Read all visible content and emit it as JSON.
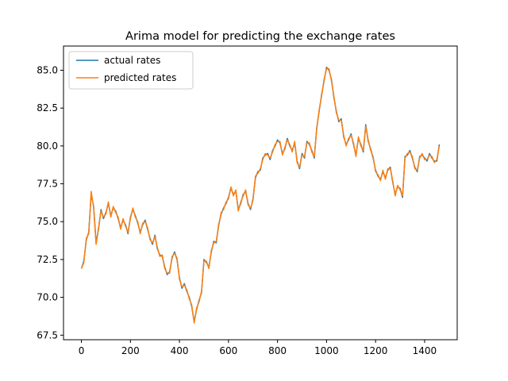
{
  "chart_data": {
    "type": "line",
    "title": "Arima model for predicting the exchange rates",
    "xlabel": "",
    "ylabel": "",
    "xlim": [
      -73,
      1533
    ],
    "ylim": [
      67.2,
      86.6
    ],
    "xticks": [
      0,
      200,
      400,
      600,
      800,
      1000,
      1200,
      1400
    ],
    "xtick_labels": [
      "0",
      "200",
      "400",
      "600",
      "800",
      "1000",
      "1200",
      "1400"
    ],
    "yticks": [
      67.5,
      70.0,
      72.5,
      75.0,
      77.5,
      80.0,
      82.5,
      85.0
    ],
    "ytick_labels": [
      "67.5",
      "70.0",
      "72.5",
      "75.0",
      "77.5",
      "80.0",
      "82.5",
      "85.0"
    ],
    "grid": false,
    "legend": "top-left",
    "series": [
      {
        "name": "actual rates",
        "color": "#1f77b4",
        "x": [
          0,
          10,
          20,
          30,
          40,
          50,
          60,
          70,
          80,
          90,
          100,
          110,
          120,
          130,
          140,
          150,
          160,
          170,
          180,
          190,
          200,
          210,
          220,
          230,
          240,
          250,
          260,
          270,
          280,
          290,
          300,
          310,
          320,
          330,
          340,
          350,
          360,
          370,
          380,
          390,
          400,
          410,
          420,
          430,
          440,
          450,
          460,
          470,
          480,
          490,
          500,
          510,
          520,
          530,
          540,
          550,
          560,
          570,
          580,
          590,
          600,
          610,
          620,
          630,
          640,
          650,
          660,
          670,
          680,
          690,
          700,
          710,
          720,
          730,
          740,
          750,
          760,
          770,
          780,
          790,
          800,
          810,
          820,
          830,
          840,
          850,
          860,
          870,
          880,
          890,
          900,
          910,
          920,
          930,
          940,
          950,
          960,
          970,
          980,
          990,
          1000,
          1010,
          1020,
          1030,
          1040,
          1050,
          1060,
          1070,
          1080,
          1090,
          1100,
          1110,
          1120,
          1130,
          1140,
          1150,
          1160,
          1170,
          1180,
          1190,
          1200,
          1210,
          1220,
          1230,
          1240,
          1250,
          1260,
          1270,
          1280,
          1290,
          1300,
          1310,
          1320,
          1330,
          1340,
          1350,
          1360,
          1370,
          1380,
          1390,
          1400,
          1410,
          1420,
          1430,
          1440,
          1450,
          1460
        ],
        "y": [
          71.9,
          72.4,
          73.8,
          74.3,
          76.8,
          76.0,
          73.6,
          74.5,
          75.8,
          75.2,
          75.6,
          76.2,
          75.4,
          75.9,
          75.7,
          75.2,
          74.6,
          75.1,
          74.8,
          74.2,
          75.3,
          75.8,
          75.4,
          74.9,
          74.3,
          74.8,
          75.1,
          74.5,
          73.9,
          73.5,
          74.1,
          73.2,
          72.8,
          72.7,
          72.0,
          71.5,
          71.7,
          72.6,
          73.0,
          72.5,
          71.3,
          70.6,
          70.9,
          70.4,
          70.0,
          69.4,
          68.4,
          69.2,
          69.8,
          70.3,
          72.5,
          72.3,
          72.0,
          73.0,
          73.7,
          73.6,
          74.8,
          75.5,
          75.9,
          76.2,
          76.6,
          77.2,
          76.8,
          77.0,
          75.8,
          76.2,
          76.8,
          77.0,
          76.2,
          75.8,
          76.5,
          77.9,
          78.3,
          78.4,
          79.2,
          79.4,
          79.5,
          79.1,
          79.7,
          80.0,
          80.4,
          80.2,
          79.5,
          79.8,
          80.5,
          80.0,
          79.7,
          80.2,
          79.0,
          78.5,
          79.5,
          79.2,
          80.3,
          80.1,
          79.7,
          79.2,
          81.2,
          82.3,
          83.4,
          84.3,
          85.2,
          85.0,
          84.4,
          83.2,
          82.3,
          81.6,
          81.8,
          80.6,
          80.1,
          80.4,
          80.8,
          80.1,
          79.4,
          80.5,
          80.1,
          79.6,
          81.4,
          80.3,
          79.8,
          79.2,
          78.4,
          78.0,
          77.8,
          78.3,
          77.9,
          78.4,
          78.6,
          77.6,
          76.8,
          77.3,
          77.2,
          76.6,
          79.3,
          79.4,
          79.7,
          79.2,
          78.6,
          78.3,
          79.3,
          79.4,
          79.2,
          79.0,
          79.5,
          79.2,
          79.0,
          79.0,
          80.1
        ]
      },
      {
        "name": "predicted rates",
        "color": "#ff7f0e",
        "x": [
          0,
          10,
          20,
          30,
          40,
          50,
          60,
          70,
          80,
          90,
          100,
          110,
          120,
          130,
          140,
          150,
          160,
          170,
          180,
          190,
          200,
          210,
          220,
          230,
          240,
          250,
          260,
          270,
          280,
          290,
          300,
          310,
          320,
          330,
          340,
          350,
          360,
          370,
          380,
          390,
          400,
          410,
          420,
          430,
          440,
          450,
          460,
          470,
          480,
          490,
          500,
          510,
          520,
          530,
          540,
          550,
          560,
          570,
          580,
          590,
          600,
          610,
          620,
          630,
          640,
          650,
          660,
          670,
          680,
          690,
          700,
          710,
          720,
          730,
          740,
          750,
          760,
          770,
          780,
          790,
          800,
          810,
          820,
          830,
          840,
          850,
          860,
          870,
          880,
          890,
          900,
          910,
          920,
          930,
          940,
          950,
          960,
          970,
          980,
          990,
          1000,
          1010,
          1020,
          1030,
          1040,
          1050,
          1060,
          1070,
          1080,
          1090,
          1100,
          1110,
          1120,
          1130,
          1140,
          1150,
          1160,
          1170,
          1180,
          1190,
          1200,
          1210,
          1220,
          1230,
          1240,
          1250,
          1260,
          1270,
          1280,
          1290,
          1300,
          1310,
          1320,
          1330,
          1340,
          1350,
          1360,
          1370,
          1380,
          1390,
          1400,
          1410,
          1420,
          1430,
          1440,
          1450,
          1460
        ],
        "y": [
          71.9,
          72.3,
          73.9,
          74.2,
          77.0,
          75.9,
          73.5,
          74.6,
          75.7,
          75.3,
          75.5,
          76.3,
          75.3,
          76.0,
          75.6,
          75.3,
          74.5,
          75.2,
          74.7,
          74.3,
          75.2,
          75.9,
          75.3,
          75.0,
          74.2,
          74.9,
          75.0,
          74.6,
          73.8,
          73.6,
          74.0,
          73.3,
          72.7,
          72.8,
          71.9,
          71.6,
          71.6,
          72.7,
          72.9,
          72.6,
          71.2,
          70.7,
          70.8,
          70.5,
          69.9,
          69.5,
          68.3,
          69.3,
          69.7,
          70.4,
          72.4,
          72.4,
          71.9,
          73.1,
          73.6,
          73.7,
          74.7,
          75.6,
          75.8,
          76.3,
          76.5,
          77.3,
          76.7,
          77.1,
          75.7,
          76.3,
          76.7,
          77.1,
          76.1,
          75.9,
          76.4,
          78.0,
          78.2,
          78.5,
          79.1,
          79.5,
          79.4,
          79.2,
          79.6,
          80.1,
          80.3,
          80.3,
          79.4,
          79.9,
          80.4,
          80.1,
          79.6,
          80.3,
          78.9,
          78.6,
          79.4,
          79.3,
          80.2,
          80.2,
          79.6,
          79.3,
          81.1,
          82.4,
          83.3,
          84.4,
          85.1,
          85.1,
          84.3,
          83.3,
          82.2,
          81.7,
          81.7,
          80.7,
          80.0,
          80.5,
          80.7,
          80.2,
          79.3,
          80.6,
          80.0,
          79.7,
          81.3,
          80.4,
          79.7,
          79.3,
          78.3,
          78.1,
          77.7,
          78.4,
          77.8,
          78.5,
          78.5,
          77.7,
          76.7,
          77.4,
          77.1,
          76.7,
          79.2,
          79.5,
          79.6,
          79.3,
          78.5,
          78.4,
          79.2,
          79.5,
          79.1,
          79.1,
          79.4,
          79.3,
          78.9,
          79.1,
          80.0
        ]
      }
    ]
  }
}
